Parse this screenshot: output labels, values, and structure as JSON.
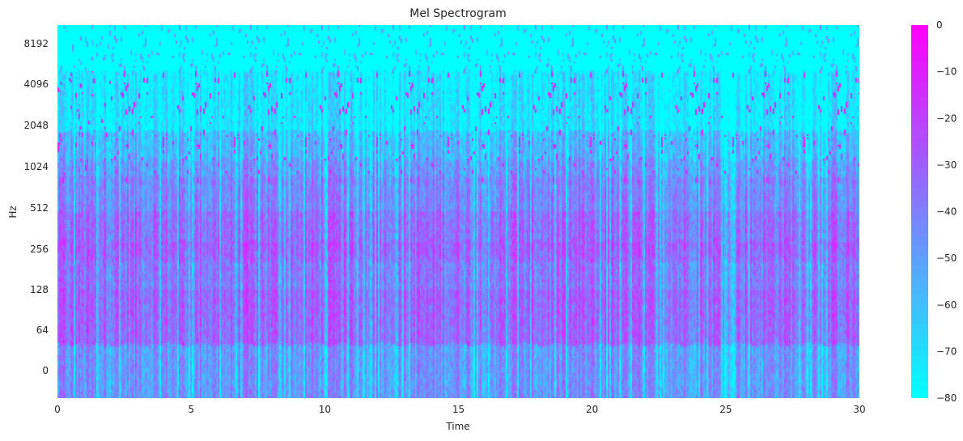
{
  "chart_data": {
    "type": "heatmap",
    "title": "Mel Spectrogram",
    "xlabel": "Time",
    "ylabel": "Hz",
    "xlim": [
      0,
      30
    ],
    "x_ticks": [
      "0",
      "5",
      "10",
      "15",
      "20",
      "25",
      "30"
    ],
    "x_tick_values": [
      0,
      5,
      10,
      15,
      20,
      25,
      30
    ],
    "y_scale": "mel",
    "y_ticks": [
      "0",
      "64",
      "128",
      "256",
      "512",
      "1024",
      "2048",
      "4096",
      "8192"
    ],
    "y_tick_values": [
      0,
      64,
      128,
      256,
      512,
      1024,
      2048,
      4096,
      8192
    ],
    "colorbar": {
      "ticks": [
        "0",
        "−10",
        "−20",
        "−30",
        "−40",
        "−50",
        "−60",
        "−70",
        "−80"
      ],
      "tick_values": [
        0,
        -10,
        -20,
        -30,
        -40,
        -50,
        -60,
        -70,
        -80
      ],
      "range": [
        -80,
        0
      ],
      "colormap": "cool",
      "low_color": "#00ffff",
      "high_color": "#ff00ff"
    },
    "grid": false
  }
}
